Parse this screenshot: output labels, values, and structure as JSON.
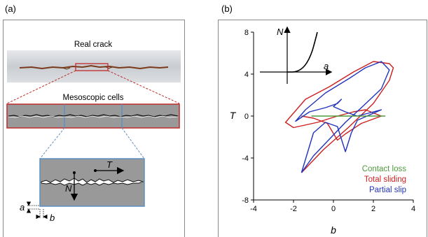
{
  "figure": {
    "left": {
      "label": "(a)",
      "real_crack_label": "Real crack",
      "meso_label": "Mesoscopic cells",
      "symbols": {
        "N": "N",
        "T": "T",
        "a": "a",
        "b": "b"
      }
    },
    "right": {
      "label": "(b)",
      "inset": {
        "ylabel": "N",
        "xlabel": "a"
      }
    }
  },
  "colors": {
    "contact_loss": "#4f9a3c",
    "total_sliding": "#cc1f1f",
    "partial_slip": "#2233bb",
    "cell_border": "#c02a2a",
    "subcell_border": "#5b8fc4",
    "cell_fill": "#999999"
  },
  "chart_data": {
    "type": "line",
    "xlabel": "b",
    "ylabel": "T",
    "xlim": [
      -4,
      4
    ],
    "ylim": [
      -8,
      8
    ],
    "xticks": [
      -4,
      -2,
      0,
      2,
      4
    ],
    "yticks": [
      -8,
      -4,
      0,
      4,
      8
    ],
    "legend_placement": "bottom-right",
    "series": [
      {
        "name": "Contact loss",
        "color": "#4f9a3c",
        "x": [
          -1.1,
          2.6
        ],
        "y": [
          0.0,
          0.0
        ]
      },
      {
        "name": "Total sliding",
        "color": "#cc1f1f",
        "x": [
          -1.6,
          -0.5,
          0.8,
          2.0,
          2.8,
          3.0,
          2.8,
          2.0,
          1.0,
          -0.2,
          -1.4,
          -2.4,
          -2.0,
          -0.8,
          0.2,
          1.0,
          1.6,
          2.4,
          1.4,
          0.6,
          0.2,
          -0.3,
          -1.0,
          -1.6
        ],
        "y": [
          -5.4,
          -3.2,
          -1.0,
          1.2,
          3.4,
          4.6,
          5.0,
          5.2,
          4.2,
          2.8,
          1.6,
          -0.6,
          -1.1,
          -0.6,
          0.0,
          0.4,
          0.6,
          0.0,
          -0.7,
          -1.7,
          -2.3,
          -0.7,
          -0.2,
          0.0
        ]
      },
      {
        "name": "Partial slip",
        "color": "#2233bb",
        "x": [
          -1.6,
          -1.0,
          -0.2,
          0.6,
          1.4,
          2.4,
          2.8,
          2.4,
          1.6,
          0.8,
          -0.4,
          -1.4,
          -1.9,
          -1.2,
          -0.4,
          0.2,
          0.4,
          0.0,
          0.6,
          1.2,
          2.4,
          1.2,
          0.9,
          0.6,
          0.2,
          -0.4,
          -1.0,
          -1.6
        ],
        "y": [
          -5.4,
          -3.8,
          -2.2,
          -0.6,
          0.8,
          2.6,
          4.4,
          5.2,
          4.6,
          3.6,
          2.2,
          0.6,
          -0.5,
          0.4,
          0.8,
          1.2,
          1.6,
          0.9,
          0.4,
          0.0,
          0.6,
          -0.4,
          -1.6,
          -3.4,
          -1.0,
          -0.6,
          -1.6,
          -5.4
        ]
      }
    ]
  }
}
